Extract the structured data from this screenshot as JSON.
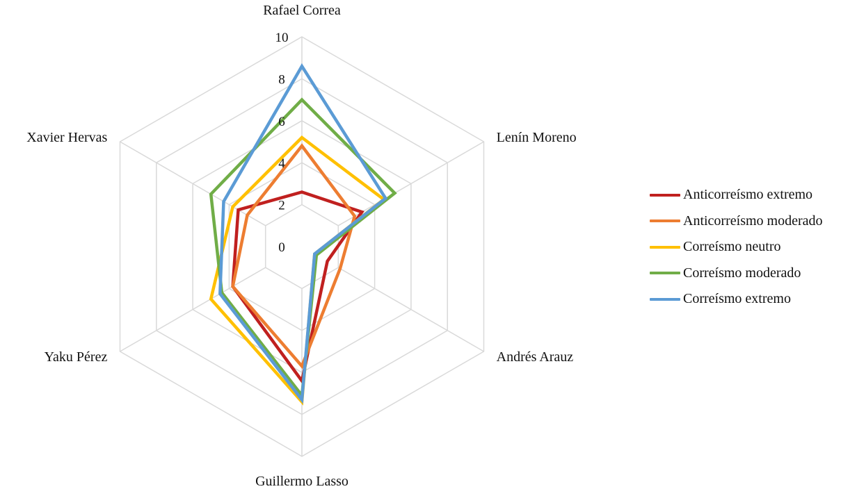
{
  "chart_data": {
    "type": "radar",
    "axes": [
      "Rafael Correa",
      "Lenín Moreno",
      "Andrés Arauz",
      "Guillermo Lasso",
      "Yaku Pérez",
      "Xavier Hervas"
    ],
    "tick_labels": [
      "0",
      "2",
      "4",
      "6",
      "8",
      "10"
    ],
    "range": [
      0,
      10
    ],
    "grid": true,
    "legend_position": "right",
    "series": [
      {
        "name": "Anticorreísmo extremo",
        "color": "#C0201F",
        "values": [
          2.6,
          3.3,
          1.4,
          6.4,
          3.8,
          3.5
        ]
      },
      {
        "name": "Anticorreísmo moderado",
        "color": "#ED7D31",
        "values": [
          4.8,
          2.9,
          2.1,
          5.7,
          3.8,
          3.0
        ]
      },
      {
        "name": "Correísmo neutro",
        "color": "#FFC000",
        "values": [
          5.2,
          4.5,
          0.7,
          7.4,
          5.0,
          3.8
        ]
      },
      {
        "name": "Correísmo moderado",
        "color": "#70AD47",
        "values": [
          7.0,
          5.1,
          0.8,
          7.1,
          4.4,
          5.0
        ]
      },
      {
        "name": "Correísmo extremo",
        "color": "#5B9BD5",
        "values": [
          8.6,
          4.6,
          0.7,
          7.3,
          4.5,
          4.3
        ]
      }
    ]
  }
}
